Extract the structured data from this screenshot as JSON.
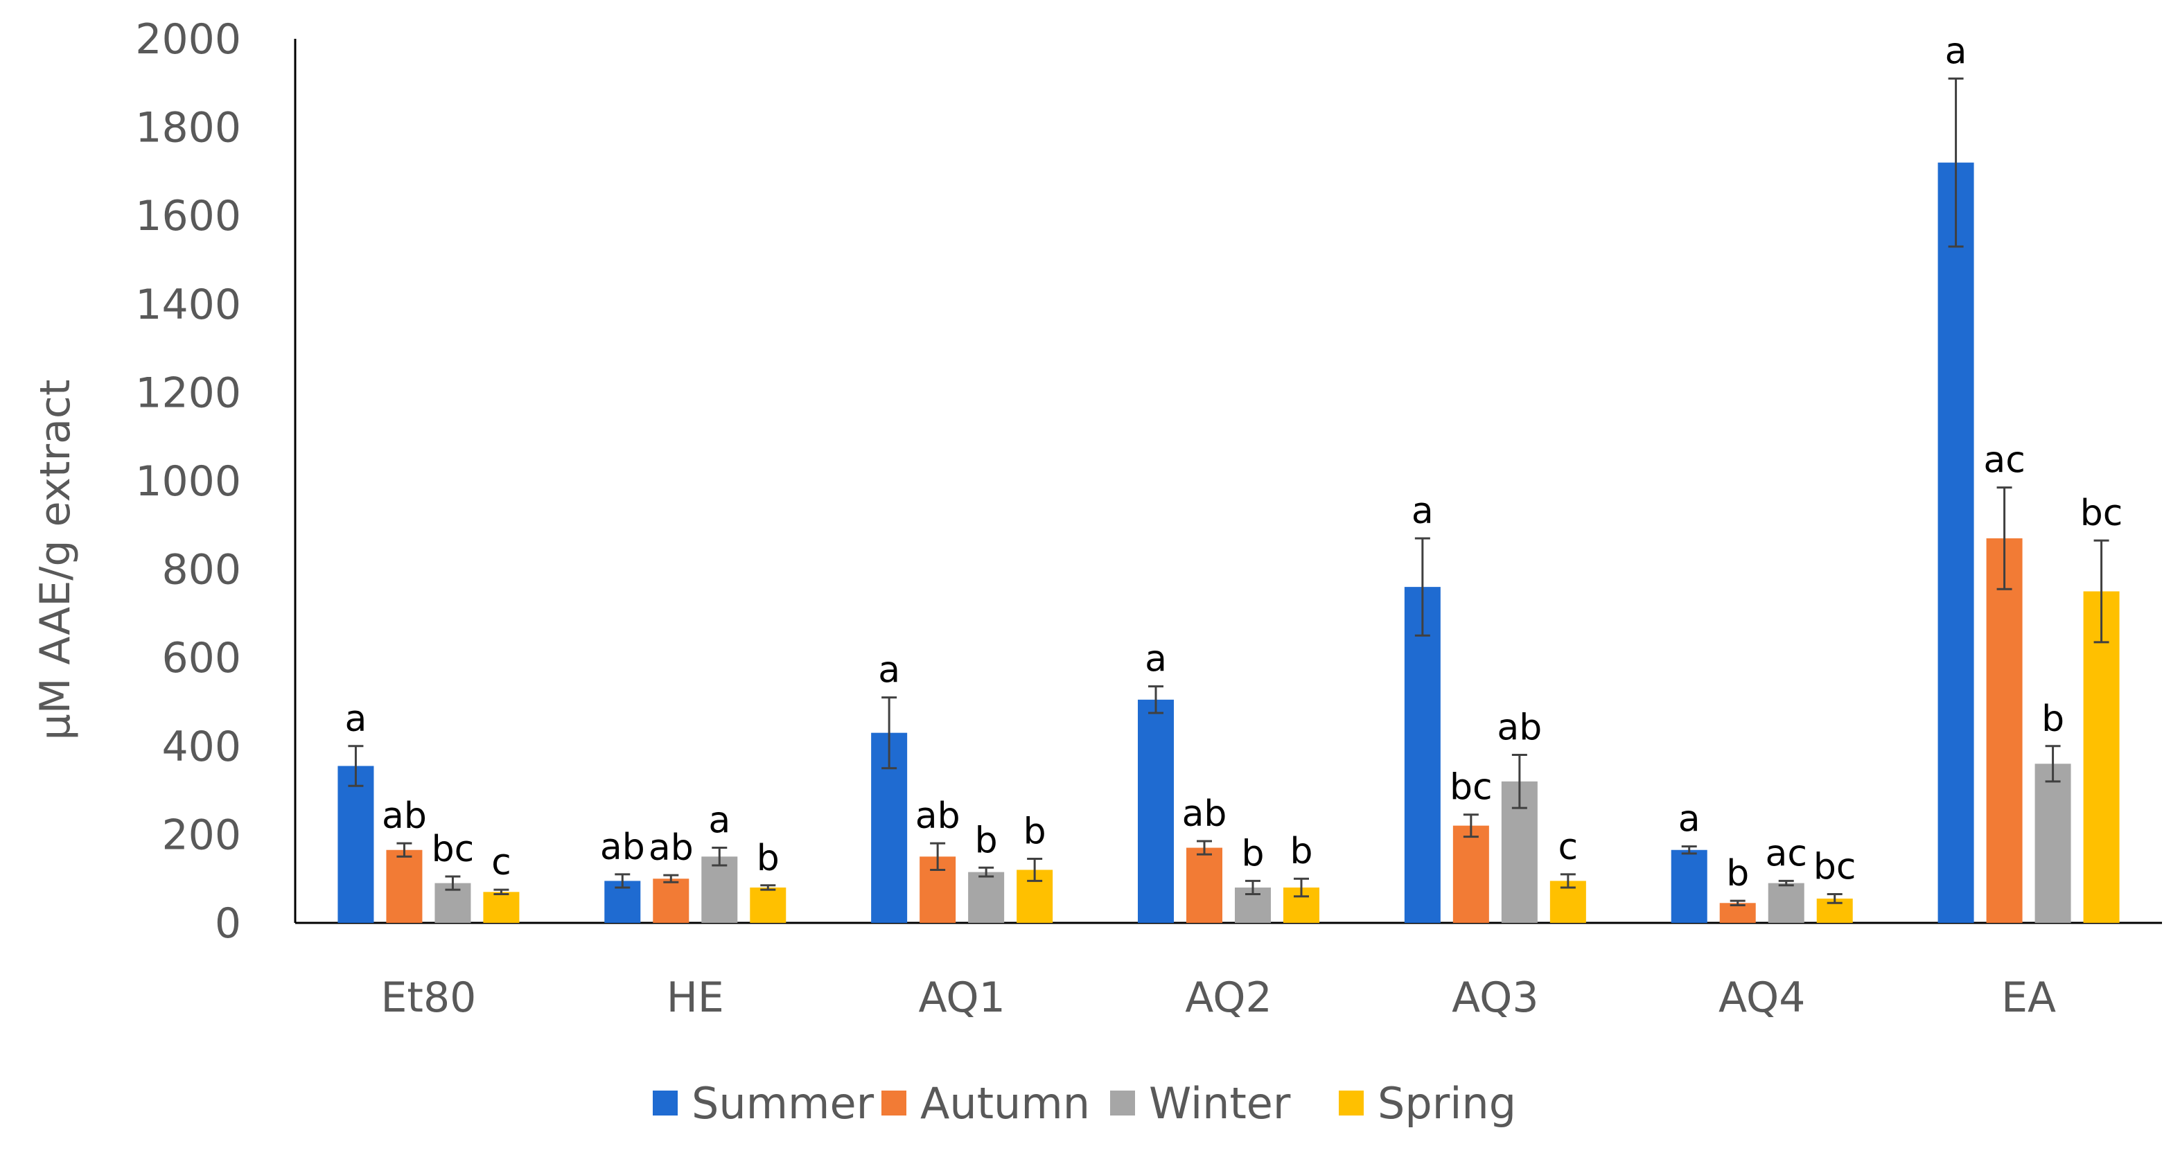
{
  "chart_data": {
    "type": "bar",
    "title": "",
    "xlabel": "",
    "ylabel": "µM AAE/g extract",
    "ylim": [
      0,
      2000
    ],
    "yticks": [
      0,
      200,
      400,
      600,
      800,
      1000,
      1200,
      1400,
      1600,
      1800,
      2000
    ],
    "grid": false,
    "legend_position": "bottom",
    "categories": [
      "Et80",
      "HE",
      "AQ1",
      "AQ2",
      "AQ3",
      "AQ4",
      "EA"
    ],
    "series": [
      {
        "name": "Summer",
        "color": "#1f6bd1",
        "values": [
          355,
          95,
          430,
          505,
          760,
          165,
          1720
        ],
        "errors": [
          45,
          15,
          80,
          30,
          110,
          8,
          190
        ],
        "labels": [
          "a",
          "ab",
          "a",
          "a",
          "a",
          "a",
          "a"
        ]
      },
      {
        "name": "Autumn",
        "color": "#f27b35",
        "values": [
          165,
          100,
          150,
          170,
          220,
          45,
          870
        ],
        "errors": [
          15,
          8,
          30,
          15,
          25,
          5,
          115
        ],
        "labels": [
          "ab",
          "ab",
          "ab",
          "ab",
          "bc",
          "b",
          "ac"
        ]
      },
      {
        "name": "Winter",
        "color": "#a6a6a6",
        "values": [
          90,
          150,
          115,
          80,
          320,
          90,
          360
        ],
        "errors": [
          15,
          20,
          10,
          15,
          60,
          5,
          40
        ],
        "labels": [
          "bc",
          "a",
          "b",
          "b",
          "ab",
          "ac",
          "b"
        ]
      },
      {
        "name": "Spring",
        "color": "#ffc000",
        "values": [
          70,
          80,
          120,
          80,
          95,
          55,
          750
        ],
        "errors": [
          5,
          5,
          25,
          20,
          15,
          10,
          115
        ],
        "labels": [
          "c",
          "b",
          "b",
          "b",
          "c",
          "bc",
          "bc"
        ]
      }
    ]
  }
}
